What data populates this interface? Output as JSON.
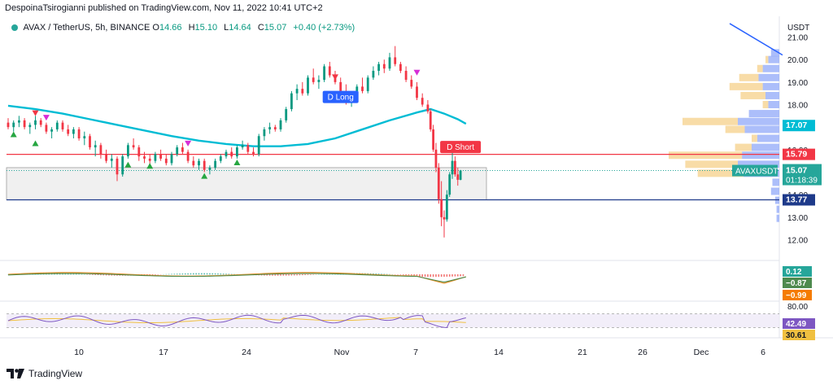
{
  "header": {
    "published": "DespoinaTsirogianni published on TradingView.com, Nov 11, 2022 10:41 UTC+2"
  },
  "legend": {
    "symbol": "AVAX / TetherUS, 5h, BINANCE",
    "open_label": "O",
    "open": "14.66",
    "high_label": "H",
    "high": "15.10",
    "low_label": "L",
    "low": "14.64",
    "close_label": "C",
    "close": "15.07",
    "change": "+0.40 (+2.73%)"
  },
  "colors": {
    "up": "#089981",
    "down": "#f23645",
    "ma": "#00bcd4",
    "resistance": "#f23645",
    "support": "#1e3a8a",
    "trend": "#2962ff",
    "vp_buy": "#90a8f8",
    "vp_sell": "#f5d08a",
    "macd": "#e68a1e",
    "signal": "#4e8a4e",
    "rsi": "#7e57c2",
    "rsi_ma": "#f0c040"
  },
  "chart_data": {
    "type": "candlestick",
    "symbol": "AVAXUSDT",
    "y_axis_label": "USDT",
    "price_ticks": [
      "21.00",
      "20.00",
      "19.00",
      "18.00",
      "17.00",
      "16.00",
      "15.00",
      "14.00",
      "13.00",
      "12.00"
    ],
    "ylim": [
      11.8,
      21.2
    ],
    "x_ticks": [
      "10",
      "17",
      "24",
      "Nov",
      "7",
      "14",
      "21",
      "26",
      "Dec",
      "6"
    ],
    "resistance_level": 15.79,
    "support_level": 13.77,
    "ma_series": [
      [
        0,
        17.95
      ],
      [
        10,
        17.8
      ],
      [
        20,
        17.6
      ],
      [
        30,
        17.35
      ],
      [
        40,
        17.1
      ],
      [
        50,
        16.85
      ],
      [
        60,
        16.6
      ],
      [
        70,
        16.4
      ],
      [
        80,
        16.25
      ],
      [
        90,
        16.15
      ],
      [
        100,
        16.15
      ],
      [
        110,
        16.25
      ],
      [
        120,
        16.5
      ],
      [
        130,
        16.9
      ],
      [
        140,
        17.3
      ],
      [
        150,
        17.65
      ],
      [
        155,
        17.8
      ],
      [
        160,
        17.6
      ],
      [
        165,
        17.35
      ],
      [
        168,
        17.15
      ]
    ],
    "candles": [
      [
        0,
        17.2,
        17.4,
        16.9,
        17.0
      ],
      [
        2,
        17.0,
        17.3,
        16.8,
        17.2
      ],
      [
        4,
        17.2,
        17.5,
        17.0,
        17.3
      ],
      [
        6,
        17.3,
        17.4,
        16.9,
        17.0
      ],
      [
        8,
        17.0,
        17.2,
        16.7,
        17.1
      ],
      [
        10,
        17.1,
        17.5,
        16.9,
        17.3
      ],
      [
        12,
        17.3,
        17.4,
        17.0,
        17.1
      ],
      [
        14,
        17.1,
        17.2,
        16.7,
        16.8
      ],
      [
        16,
        16.8,
        17.0,
        16.5,
        16.9
      ],
      [
        18,
        16.9,
        17.3,
        16.8,
        17.2
      ],
      [
        20,
        17.2,
        17.3,
        16.8,
        16.9
      ],
      [
        22,
        16.9,
        17.1,
        16.6,
        16.7
      ],
      [
        24,
        16.7,
        17.0,
        16.5,
        16.9
      ],
      [
        26,
        16.9,
        17.0,
        16.4,
        16.5
      ],
      [
        28,
        16.5,
        16.8,
        16.2,
        16.6
      ],
      [
        30,
        16.6,
        16.7,
        16.0,
        16.1
      ],
      [
        32,
        16.1,
        16.4,
        15.7,
        16.2
      ],
      [
        34,
        16.2,
        16.3,
        15.6,
        15.8
      ],
      [
        36,
        15.8,
        16.0,
        15.4,
        15.5
      ],
      [
        38,
        15.5,
        15.8,
        15.2,
        15.6
      ],
      [
        40,
        15.6,
        15.7,
        14.6,
        14.9
      ],
      [
        42,
        14.9,
        15.8,
        14.8,
        15.7
      ],
      [
        44,
        15.7,
        16.3,
        15.6,
        16.2
      ],
      [
        46,
        16.2,
        16.5,
        16.0,
        16.1
      ],
      [
        48,
        16.1,
        16.2,
        15.5,
        15.7
      ],
      [
        50,
        15.7,
        15.9,
        15.4,
        15.6
      ],
      [
        52,
        15.6,
        15.8,
        15.3,
        15.5
      ],
      [
        54,
        15.5,
        15.9,
        15.4,
        15.8
      ],
      [
        56,
        15.8,
        16.0,
        15.5,
        15.6
      ],
      [
        58,
        15.6,
        15.8,
        15.3,
        15.4
      ],
      [
        60,
        15.4,
        15.9,
        15.3,
        15.8
      ],
      [
        62,
        15.8,
        16.2,
        15.7,
        16.1
      ],
      [
        64,
        16.1,
        16.3,
        15.8,
        15.9
      ],
      [
        66,
        15.9,
        16.0,
        15.4,
        15.5
      ],
      [
        68,
        15.5,
        15.7,
        15.2,
        15.3
      ],
      [
        70,
        15.3,
        15.6,
        15.1,
        15.5
      ],
      [
        72,
        15.5,
        15.6,
        15.0,
        15.1
      ],
      [
        74,
        15.1,
        15.3,
        14.9,
        15.2
      ],
      [
        76,
        15.2,
        15.6,
        15.1,
        15.5
      ],
      [
        78,
        15.5,
        15.8,
        15.4,
        15.7
      ],
      [
        80,
        15.7,
        16.0,
        15.6,
        15.9
      ],
      [
        82,
        15.9,
        16.1,
        15.6,
        15.7
      ],
      [
        84,
        15.7,
        16.2,
        15.6,
        16.1
      ],
      [
        86,
        16.1,
        16.4,
        16.0,
        16.2
      ],
      [
        88,
        16.2,
        16.3,
        15.8,
        15.9
      ],
      [
        90,
        15.9,
        16.1,
        15.7,
        15.8
      ],
      [
        92,
        15.8,
        16.7,
        15.7,
        16.6
      ],
      [
        94,
        16.6,
        17.0,
        16.4,
        16.9
      ],
      [
        96,
        16.9,
        17.2,
        16.7,
        17.0
      ],
      [
        98,
        17.0,
        17.1,
        16.8,
        16.9
      ],
      [
        100,
        16.9,
        17.4,
        16.8,
        17.3
      ],
      [
        102,
        17.3,
        17.9,
        17.2,
        17.8
      ],
      [
        104,
        17.8,
        18.6,
        17.7,
        18.5
      ],
      [
        106,
        18.5,
        18.9,
        18.2,
        18.7
      ],
      [
        108,
        18.7,
        19.0,
        18.4,
        18.5
      ],
      [
        110,
        18.5,
        19.3,
        18.4,
        19.2
      ],
      [
        112,
        19.2,
        19.6,
        18.9,
        19.0
      ],
      [
        114,
        19.0,
        19.3,
        18.7,
        19.1
      ],
      [
        116,
        19.1,
        19.8,
        19.0,
        19.7
      ],
      [
        118,
        19.7,
        19.9,
        19.2,
        19.3
      ],
      [
        120,
        19.3,
        19.5,
        18.9,
        19.0
      ],
      [
        122,
        19.0,
        19.2,
        18.5,
        18.6
      ],
      [
        124,
        18.6,
        18.9,
        18.0,
        18.2
      ],
      [
        126,
        18.2,
        18.5,
        17.9,
        18.4
      ],
      [
        128,
        18.4,
        18.9,
        18.3,
        18.8
      ],
      [
        130,
        18.8,
        19.2,
        18.5,
        18.6
      ],
      [
        132,
        18.6,
        19.3,
        18.5,
        19.2
      ],
      [
        134,
        19.2,
        19.7,
        19.1,
        19.5
      ],
      [
        136,
        19.5,
        19.9,
        19.3,
        19.8
      ],
      [
        138,
        19.8,
        20.0,
        19.4,
        19.6
      ],
      [
        140,
        19.6,
        20.3,
        19.5,
        20.1
      ],
      [
        142,
        20.1,
        20.6,
        19.7,
        19.8
      ],
      [
        144,
        19.8,
        19.9,
        19.4,
        19.5
      ],
      [
        146,
        19.5,
        19.7,
        19.0,
        19.1
      ],
      [
        148,
        19.1,
        19.3,
        18.7,
        18.8
      ],
      [
        150,
        18.8,
        19.0,
        18.2,
        18.3
      ],
      [
        152,
        18.3,
        18.5,
        17.9,
        18.0
      ],
      [
        154,
        18.0,
        18.2,
        17.6,
        17.7
      ],
      [
        155,
        17.7,
        17.8,
        16.8,
        16.9
      ],
      [
        156,
        16.9,
        17.1,
        15.9,
        16.0
      ],
      [
        157,
        16.0,
        16.3,
        15.0,
        15.2
      ],
      [
        158,
        15.2,
        15.4,
        13.6,
        13.8
      ],
      [
        159,
        13.8,
        14.6,
        12.6,
        13.0
      ],
      [
        160,
        13.0,
        13.3,
        12.1,
        12.9
      ],
      [
        161,
        12.9,
        14.2,
        12.8,
        14.0
      ],
      [
        162,
        14.0,
        15.0,
        13.9,
        14.9
      ],
      [
        163,
        14.9,
        15.9,
        14.7,
        15.5
      ],
      [
        164,
        15.5,
        15.7,
        14.8,
        14.9
      ],
      [
        165,
        14.9,
        15.2,
        14.4,
        14.66
      ],
      [
        166,
        14.66,
        15.1,
        14.64,
        15.07
      ]
    ],
    "annotations": [
      {
        "label": "D Long",
        "x": 122,
        "y": 18.32,
        "color": "#2962ff"
      },
      {
        "label": "D Short",
        "x": 166,
        "y": 16.1,
        "color": "#f23645"
      }
    ],
    "up_triangles": [
      [
        2,
        16.7
      ],
      [
        10,
        16.3
      ],
      [
        44,
        15.35
      ],
      [
        52,
        15.3
      ],
      [
        72,
        14.85
      ],
      [
        84,
        15.45
      ]
    ],
    "down_triangles": [
      [
        10,
        17.6
      ],
      [
        14,
        17.4
      ],
      [
        66,
        16.25
      ],
      [
        120,
        19.2
      ],
      [
        150,
        19.4
      ]
    ],
    "volume_profile": [
      {
        "price": 20.3,
        "buy": 0.06,
        "sell": 0.0
      },
      {
        "price": 20.0,
        "buy": 0.08,
        "sell": 0.02
      },
      {
        "price": 19.6,
        "buy": 0.12,
        "sell": 0.04
      },
      {
        "price": 19.2,
        "buy": 0.15,
        "sell": 0.14
      },
      {
        "price": 18.8,
        "buy": 0.12,
        "sell": 0.24
      },
      {
        "price": 18.4,
        "buy": 0.1,
        "sell": 0.18
      },
      {
        "price": 18.0,
        "buy": 0.08,
        "sell": 0.04
      },
      {
        "price": 17.6,
        "buy": 0.22,
        "sell": 0.0
      },
      {
        "price": 17.25,
        "buy": 0.3,
        "sell": 0.4
      },
      {
        "price": 16.9,
        "buy": 0.25,
        "sell": 0.14
      },
      {
        "price": 16.5,
        "buy": 0.16,
        "sell": 0.04
      },
      {
        "price": 16.1,
        "buy": 0.2,
        "sell": 0.12
      },
      {
        "price": 15.75,
        "buy": 0.27,
        "sell": 0.53
      },
      {
        "price": 15.35,
        "buy": 0.3,
        "sell": 0.38
      },
      {
        "price": 14.95,
        "buy": 0.26,
        "sell": 0.33
      },
      {
        "price": 14.55,
        "buy": 0.05,
        "sell": 0.0
      },
      {
        "price": 14.15,
        "buy": 0.06,
        "sell": 0.0
      },
      {
        "price": 13.75,
        "buy": 0.03,
        "sell": 0.0
      },
      {
        "price": 13.35,
        "buy": 0.02,
        "sell": 0.0
      },
      {
        "price": 12.95,
        "buy": 0.02,
        "sell": 0.0
      }
    ],
    "price_labels": {
      "ma_value": "17.07",
      "resistance": "15.79",
      "symbol": "AVAXUSDT",
      "last_price": "15.07",
      "countdown": "01:18:39",
      "support": "13.77"
    },
    "macd": {
      "labels": [
        "0.12",
        "−0.87",
        "−0.99"
      ],
      "label_colors": [
        "#26a69a",
        "#4e8a4e",
        "#f57c00"
      ]
    },
    "rsi": {
      "ticks": [
        "80.00",
        "42.49",
        "30.61"
      ],
      "upper": 80,
      "lower": 20
    }
  },
  "footer": {
    "brand": "TradingView"
  }
}
